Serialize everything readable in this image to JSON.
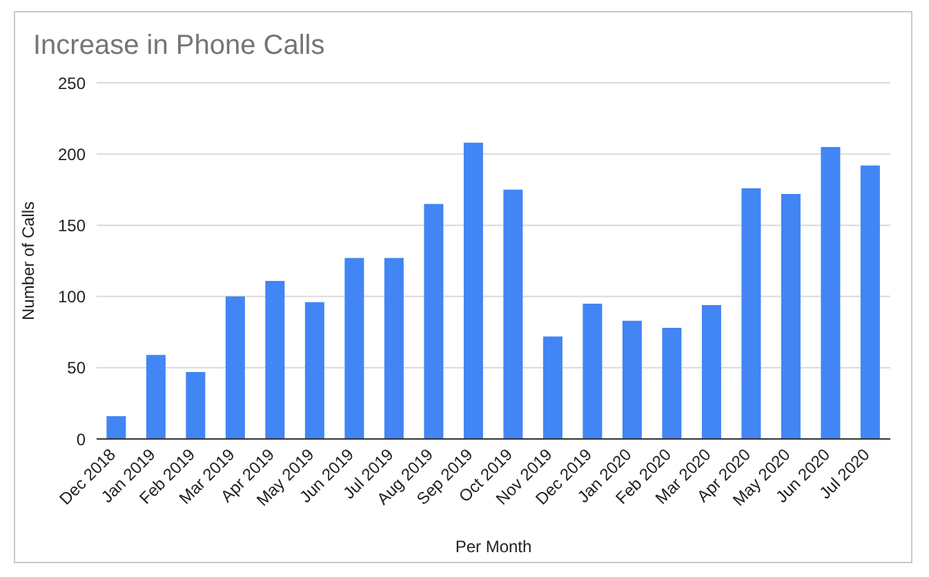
{
  "chart_data": {
    "type": "bar",
    "title": "Increase in Phone Calls",
    "xlabel": "Per Month",
    "ylabel": "Number of Calls",
    "categories": [
      "Dec 2018",
      "Jan 2019",
      "Feb 2019",
      "Mar 2019",
      "Apr 2019",
      "May 2019",
      "Jun 2019",
      "Jul 2019",
      "Aug 2019",
      "Sep 2019",
      "Oct 2019",
      "Nov 2019",
      "Dec 2019",
      "Jan 2020",
      "Feb 2020",
      "Mar 2020",
      "Apr 2020",
      "May 2020",
      "Jun 2020",
      "Jul 2020"
    ],
    "values": [
      16,
      59,
      47,
      100,
      111,
      96,
      127,
      127,
      165,
      208,
      175,
      72,
      95,
      83,
      78,
      94,
      176,
      172,
      205,
      192
    ],
    "color": "#4285f4",
    "ylim": [
      0,
      250
    ],
    "yticks": [
      0,
      50,
      100,
      150,
      200,
      250
    ],
    "grid": "y",
    "legend": false
  }
}
